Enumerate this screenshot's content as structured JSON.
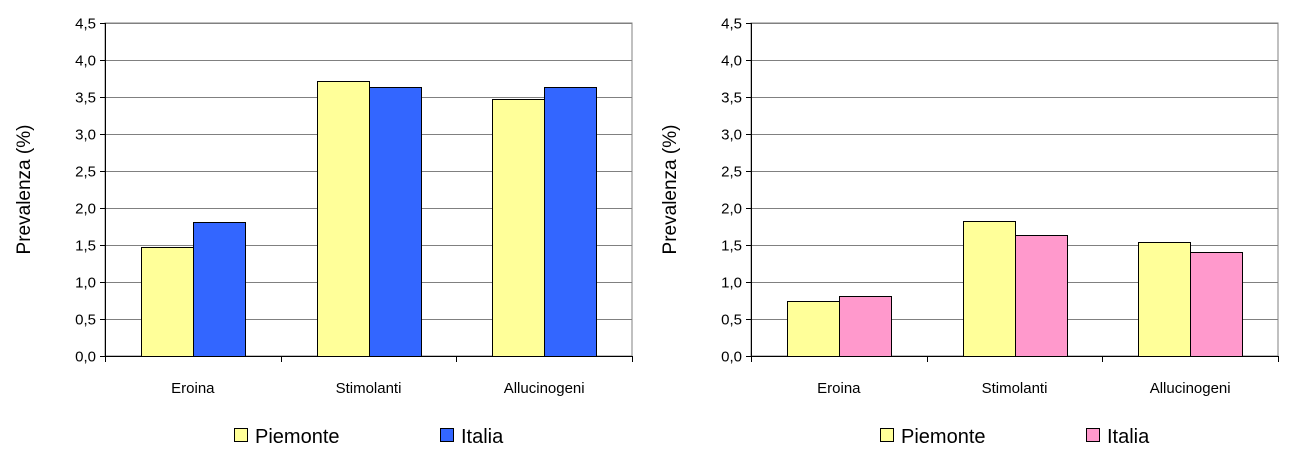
{
  "chart_data": [
    {
      "type": "bar",
      "categories": [
        "Eroina",
        "Stimolanti",
        "Allucinogeni"
      ],
      "series": [
        {
          "name": "Piemonte",
          "color": "#FFFF99",
          "values": [
            1.47,
            3.72,
            3.47
          ]
        },
        {
          "name": "Italia",
          "color": "#3366FF",
          "values": [
            1.81,
            3.64,
            3.64
          ]
        }
      ],
      "ylabel": "Prevalenza (%)",
      "ylim": [
        0,
        4.5
      ],
      "yticks": [
        "0,0",
        "0,5",
        "1,0",
        "1,5",
        "2,0",
        "2,5",
        "3,0",
        "3,5",
        "4,0",
        "4,5"
      ],
      "grid": true,
      "legend_position": "bottom"
    },
    {
      "type": "bar",
      "categories": [
        "Eroina",
        "Stimolanti",
        "Allucinogeni"
      ],
      "series": [
        {
          "name": "Piemonte",
          "color": "#FFFF99",
          "values": [
            0.74,
            1.83,
            1.54
          ]
        },
        {
          "name": "Italia",
          "color": "#FF99CC",
          "values": [
            0.81,
            1.64,
            1.4
          ]
        }
      ],
      "ylabel": "Prevalenza (%)",
      "ylim": [
        0,
        4.5
      ],
      "yticks": [
        "0,0",
        "0,5",
        "1,0",
        "1,5",
        "2,0",
        "2,5",
        "3,0",
        "3,5",
        "4,0",
        "4,5"
      ],
      "grid": true,
      "legend_position": "bottom"
    }
  ]
}
